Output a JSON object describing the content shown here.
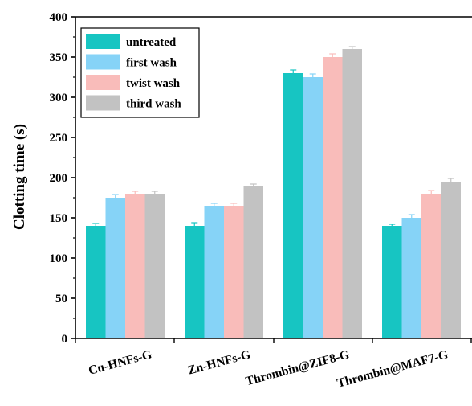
{
  "chart_data": {
    "type": "bar",
    "title": "",
    "xlabel": "",
    "ylabel": "Clotting time (s)",
    "ylim": [
      0,
      400
    ],
    "yticks": [
      0,
      50,
      100,
      150,
      200,
      250,
      300,
      350,
      400
    ],
    "categories": [
      "Cu-HNFs-G",
      "Zn-HNFs-G",
      "Thrombin@ZIF8-G",
      "Thrombin@MAF7-G"
    ],
    "series": [
      {
        "name": "untreated",
        "color": "#17c5c2",
        "values": [
          140,
          140,
          330,
          140
        ],
        "errors": [
          3,
          4,
          4,
          2
        ]
      },
      {
        "name": "first wash",
        "color": "#86d3f7",
        "values": [
          175,
          165,
          325,
          150
        ],
        "errors": [
          4,
          3,
          4,
          4
        ]
      },
      {
        "name": "twist wash",
        "color": "#f9bcba",
        "values": [
          180,
          165,
          350,
          180
        ],
        "errors": [
          3,
          3,
          4,
          4
        ]
      },
      {
        "name": "third wash",
        "color": "#c2c2c2",
        "values": [
          180,
          190,
          360,
          195
        ],
        "errors": [
          3,
          2,
          3,
          4
        ]
      }
    ],
    "legend_position": "top-left",
    "grid": false
  }
}
